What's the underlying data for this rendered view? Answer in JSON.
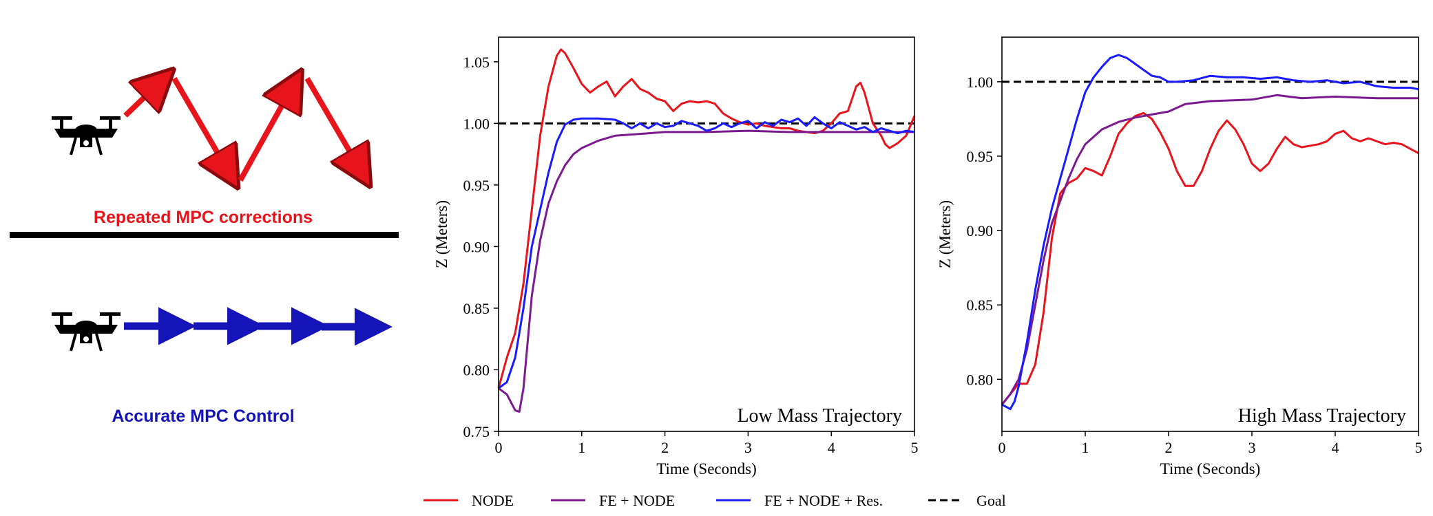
{
  "illustration": {
    "top_caption": "Repeated MPC corrections",
    "bottom_caption": "Accurate MPC Control",
    "top_color": "#e8141b",
    "bottom_color": "#1414b8",
    "icon": "drone-icon"
  },
  "legend": {
    "placement": "bottom-center",
    "entries": [
      {
        "label": "NODE",
        "color": "#e8141b",
        "style": "solid"
      },
      {
        "label": "FE + NODE",
        "color": "#7b1a8f",
        "style": "solid"
      },
      {
        "label": "FE + NODE + Res.",
        "color": "#1a1aff",
        "style": "solid"
      },
      {
        "label": "Goal",
        "color": "#000000",
        "style": "dashed"
      }
    ]
  },
  "chart_data": [
    {
      "type": "line",
      "annotation": "Low Mass Trajectory",
      "xlabel": "Time (Seconds)",
      "ylabel": "Z (Meters)",
      "xlim": [
        0,
        5
      ],
      "ylim": [
        0.75,
        1.07
      ],
      "xticks": [
        "0",
        "1",
        "2",
        "3",
        "4",
        "5"
      ],
      "yticks": [
        "0.75",
        "0.80",
        "0.85",
        "0.90",
        "0.95",
        "1.00",
        "1.05"
      ],
      "goal": 1.0,
      "series": [
        {
          "name": "NODE",
          "color": "#e8141b",
          "points": [
            [
              0,
              0.785
            ],
            [
              0.1,
              0.81
            ],
            [
              0.2,
              0.83
            ],
            [
              0.3,
              0.87
            ],
            [
              0.4,
              0.93
            ],
            [
              0.5,
              0.99
            ],
            [
              0.6,
              1.03
            ],
            [
              0.7,
              1.055
            ],
            [
              0.75,
              1.06
            ],
            [
              0.8,
              1.057
            ],
            [
              0.9,
              1.045
            ],
            [
              1.0,
              1.032
            ],
            [
              1.1,
              1.025
            ],
            [
              1.2,
              1.03
            ],
            [
              1.3,
              1.034
            ],
            [
              1.4,
              1.022
            ],
            [
              1.5,
              1.03
            ],
            [
              1.6,
              1.036
            ],
            [
              1.7,
              1.028
            ],
            [
              1.8,
              1.025
            ],
            [
              1.9,
              1.02
            ],
            [
              2.0,
              1.018
            ],
            [
              2.1,
              1.01
            ],
            [
              2.2,
              1.016
            ],
            [
              2.3,
              1.018
            ],
            [
              2.4,
              1.017
            ],
            [
              2.5,
              1.018
            ],
            [
              2.6,
              1.016
            ],
            [
              2.7,
              1.008
            ],
            [
              2.8,
              1.004
            ],
            [
              2.9,
              1.001
            ],
            [
              3.0,
              0.999
            ],
            [
              3.1,
              1.0
            ],
            [
              3.2,
              0.998
            ],
            [
              3.3,
              0.997
            ],
            [
              3.4,
              0.996
            ],
            [
              3.5,
              0.996
            ],
            [
              3.6,
              0.994
            ],
            [
              3.7,
              0.993
            ],
            [
              3.8,
              0.992
            ],
            [
              3.9,
              0.994
            ],
            [
              4.0,
              1.0
            ],
            [
              4.1,
              1.008
            ],
            [
              4.2,
              1.01
            ],
            [
              4.3,
              1.03
            ],
            [
              4.35,
              1.033
            ],
            [
              4.4,
              1.025
            ],
            [
              4.5,
              1.0
            ],
            [
              4.6,
              0.99
            ],
            [
              4.65,
              0.983
            ],
            [
              4.7,
              0.98
            ],
            [
              4.8,
              0.984
            ],
            [
              4.9,
              0.99
            ],
            [
              5.0,
              1.006
            ]
          ]
        },
        {
          "name": "FE + NODE",
          "color": "#7b1a8f",
          "points": [
            [
              0,
              0.785
            ],
            [
              0.1,
              0.78
            ],
            [
              0.2,
              0.767
            ],
            [
              0.25,
              0.766
            ],
            [
              0.3,
              0.785
            ],
            [
              0.4,
              0.86
            ],
            [
              0.5,
              0.905
            ],
            [
              0.6,
              0.935
            ],
            [
              0.7,
              0.953
            ],
            [
              0.8,
              0.966
            ],
            [
              0.9,
              0.975
            ],
            [
              1.0,
              0.98
            ],
            [
              1.2,
              0.986
            ],
            [
              1.4,
              0.99
            ],
            [
              1.6,
              0.991
            ],
            [
              1.8,
              0.992
            ],
            [
              2.0,
              0.993
            ],
            [
              2.5,
              0.993
            ],
            [
              3.0,
              0.994
            ],
            [
              3.5,
              0.993
            ],
            [
              4.0,
              0.993
            ],
            [
              4.5,
              0.993
            ],
            [
              5.0,
              0.993
            ]
          ]
        },
        {
          "name": "FE + NODE + Res.",
          "color": "#1a1aff",
          "points": [
            [
              0,
              0.785
            ],
            [
              0.1,
              0.79
            ],
            [
              0.2,
              0.81
            ],
            [
              0.3,
              0.85
            ],
            [
              0.4,
              0.9
            ],
            [
              0.5,
              0.93
            ],
            [
              0.6,
              0.96
            ],
            [
              0.7,
              0.985
            ],
            [
              0.8,
              0.999
            ],
            [
              0.9,
              1.003
            ],
            [
              1.0,
              1.004
            ],
            [
              1.2,
              1.004
            ],
            [
              1.4,
              1.003
            ],
            [
              1.5,
              1.0
            ],
            [
              1.6,
              0.996
            ],
            [
              1.7,
              1.0
            ],
            [
              1.8,
              0.996
            ],
            [
              1.9,
              1.0
            ],
            [
              2.0,
              0.997
            ],
            [
              2.1,
              0.998
            ],
            [
              2.2,
              1.002
            ],
            [
              2.3,
              1.0
            ],
            [
              2.4,
              0.998
            ],
            [
              2.5,
              0.994
            ],
            [
              2.6,
              0.996
            ],
            [
              2.7,
              1.0
            ],
            [
              2.8,
              0.997
            ],
            [
              2.9,
              1.0
            ],
            [
              3.0,
              1.002
            ],
            [
              3.1,
              0.996
            ],
            [
              3.2,
              1.001
            ],
            [
              3.3,
              0.998
            ],
            [
              3.4,
              1.003
            ],
            [
              3.5,
              1.001
            ],
            [
              3.6,
              1.004
            ],
            [
              3.7,
              0.998
            ],
            [
              3.8,
              1.005
            ],
            [
              3.9,
              1.0
            ],
            [
              4.0,
              0.996
            ],
            [
              4.1,
              1.001
            ],
            [
              4.2,
              0.998
            ],
            [
              4.3,
              0.995
            ],
            [
              4.4,
              0.997
            ],
            [
              4.5,
              0.993
            ],
            [
              4.6,
              0.996
            ],
            [
              4.7,
              0.994
            ],
            [
              4.8,
              0.992
            ],
            [
              4.9,
              0.994
            ],
            [
              5.0,
              0.993
            ]
          ]
        }
      ]
    },
    {
      "type": "line",
      "annotation": "High Mass Trajectory",
      "xlabel": "Time (Seconds)",
      "ylabel": "Z (Meters)",
      "xlim": [
        0,
        5
      ],
      "ylim": [
        0.765,
        1.03
      ],
      "xticks": [
        "0",
        "1",
        "2",
        "3",
        "4",
        "5"
      ],
      "yticks": [
        "0.80",
        "0.85",
        "0.90",
        "0.95",
        "1.00"
      ],
      "goal": 1.0,
      "series": [
        {
          "name": "NODE",
          "color": "#e8141b",
          "points": [
            [
              0,
              0.783
            ],
            [
              0.1,
              0.79
            ],
            [
              0.2,
              0.797
            ],
            [
              0.3,
              0.797
            ],
            [
              0.4,
              0.81
            ],
            [
              0.5,
              0.845
            ],
            [
              0.6,
              0.895
            ],
            [
              0.7,
              0.925
            ],
            [
              0.8,
              0.932
            ],
            [
              0.9,
              0.935
            ],
            [
              1.0,
              0.942
            ],
            [
              1.1,
              0.94
            ],
            [
              1.2,
              0.937
            ],
            [
              1.3,
              0.95
            ],
            [
              1.4,
              0.965
            ],
            [
              1.5,
              0.972
            ],
            [
              1.6,
              0.977
            ],
            [
              1.7,
              0.979
            ],
            [
              1.8,
              0.975
            ],
            [
              1.9,
              0.966
            ],
            [
              2.0,
              0.955
            ],
            [
              2.1,
              0.94
            ],
            [
              2.2,
              0.93
            ],
            [
              2.3,
              0.93
            ],
            [
              2.4,
              0.94
            ],
            [
              2.5,
              0.955
            ],
            [
              2.6,
              0.967
            ],
            [
              2.7,
              0.974
            ],
            [
              2.8,
              0.968
            ],
            [
              2.9,
              0.958
            ],
            [
              3.0,
              0.945
            ],
            [
              3.1,
              0.94
            ],
            [
              3.2,
              0.945
            ],
            [
              3.3,
              0.955
            ],
            [
              3.4,
              0.963
            ],
            [
              3.5,
              0.958
            ],
            [
              3.6,
              0.956
            ],
            [
              3.7,
              0.957
            ],
            [
              3.8,
              0.958
            ],
            [
              3.9,
              0.96
            ],
            [
              4.0,
              0.965
            ],
            [
              4.1,
              0.967
            ],
            [
              4.2,
              0.962
            ],
            [
              4.3,
              0.96
            ],
            [
              4.4,
              0.962
            ],
            [
              4.5,
              0.96
            ],
            [
              4.6,
              0.958
            ],
            [
              4.7,
              0.959
            ],
            [
              4.8,
              0.958
            ],
            [
              4.9,
              0.955
            ],
            [
              5.0,
              0.952
            ]
          ]
        },
        {
          "name": "FE + NODE",
          "color": "#7b1a8f",
          "points": [
            [
              0,
              0.783
            ],
            [
              0.1,
              0.79
            ],
            [
              0.2,
              0.8
            ],
            [
              0.3,
              0.82
            ],
            [
              0.4,
              0.85
            ],
            [
              0.5,
              0.88
            ],
            [
              0.6,
              0.905
            ],
            [
              0.7,
              0.92
            ],
            [
              0.8,
              0.935
            ],
            [
              0.9,
              0.948
            ],
            [
              1.0,
              0.958
            ],
            [
              1.2,
              0.968
            ],
            [
              1.4,
              0.973
            ],
            [
              1.6,
              0.976
            ],
            [
              1.8,
              0.978
            ],
            [
              2.0,
              0.98
            ],
            [
              2.2,
              0.985
            ],
            [
              2.5,
              0.987
            ],
            [
              3.0,
              0.988
            ],
            [
              3.3,
              0.991
            ],
            [
              3.6,
              0.989
            ],
            [
              4.0,
              0.99
            ],
            [
              4.5,
              0.989
            ],
            [
              5.0,
              0.989
            ]
          ]
        },
        {
          "name": "FE + NODE + Res.",
          "color": "#1a1aff",
          "points": [
            [
              0,
              0.783
            ],
            [
              0.1,
              0.78
            ],
            [
              0.15,
              0.785
            ],
            [
              0.2,
              0.795
            ],
            [
              0.3,
              0.825
            ],
            [
              0.4,
              0.86
            ],
            [
              0.5,
              0.89
            ],
            [
              0.6,
              0.915
            ],
            [
              0.7,
              0.935
            ],
            [
              0.8,
              0.955
            ],
            [
              0.9,
              0.975
            ],
            [
              1.0,
              0.993
            ],
            [
              1.1,
              1.003
            ],
            [
              1.2,
              1.01
            ],
            [
              1.3,
              1.016
            ],
            [
              1.4,
              1.018
            ],
            [
              1.5,
              1.016
            ],
            [
              1.6,
              1.012
            ],
            [
              1.7,
              1.008
            ],
            [
              1.8,
              1.004
            ],
            [
              1.9,
              1.003
            ],
            [
              2.0,
              1.0
            ],
            [
              2.1,
              1.0
            ],
            [
              2.3,
              1.001
            ],
            [
              2.5,
              1.004
            ],
            [
              2.7,
              1.003
            ],
            [
              2.9,
              1.003
            ],
            [
              3.1,
              1.002
            ],
            [
              3.3,
              1.003
            ],
            [
              3.5,
              1.001
            ],
            [
              3.7,
              1.0
            ],
            [
              3.9,
              1.001
            ],
            [
              4.1,
              0.999
            ],
            [
              4.3,
              1.0
            ],
            [
              4.5,
              0.997
            ],
            [
              4.7,
              0.996
            ],
            [
              4.9,
              0.996
            ],
            [
              5.0,
              0.995
            ]
          ]
        }
      ]
    }
  ]
}
